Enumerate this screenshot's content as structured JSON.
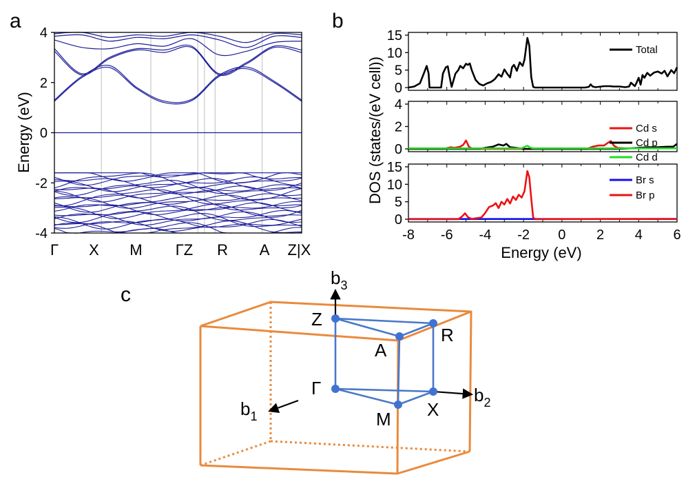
{
  "panel_labels": {
    "a": "a",
    "b": "b",
    "c": "c"
  },
  "colors": {
    "band": "#1c1c9a",
    "frame": "#000000",
    "grid": "#c8c8c8",
    "red": "#ee1111",
    "black": "#000000",
    "green": "#22dd22",
    "blue": "#1111ee",
    "bz_orange": "#e98a3c",
    "bz_blue": "#4a78c8",
    "bz_point": "#3f72d2"
  },
  "chart_data": [
    {
      "id": "band_structure",
      "type": "line",
      "title": "",
      "ylabel": "Energy (eV)",
      "ylim": [
        -4,
        4
      ],
      "yticks": [
        -4,
        -2,
        0,
        2,
        4
      ],
      "kpath": [
        "Γ",
        "X",
        "M",
        "Γ",
        "Z",
        "R",
        "A",
        "Z|X"
      ],
      "kpath_labels": [
        "Γ",
        "X",
        "M",
        "ΓZ",
        "R",
        "A",
        "Z|X"
      ],
      "kpath_positions": [
        0,
        0.19,
        0.39,
        0.58,
        0.65,
        0.84,
        1.0
      ],
      "fermi_level": 0,
      "conduction_band_min": 1.2,
      "valence_band_max": -1.6,
      "conduction_bands": [
        {
          "name": "cb1",
          "values": [
            1.25,
            2.2,
            2.6,
            1.75,
            1.2,
            1.28,
            2.25,
            2.55,
            2.0,
            1.25
          ]
        },
        {
          "name": "cb2",
          "values": [
            1.3,
            2.25,
            2.68,
            1.8,
            1.26,
            1.33,
            2.3,
            2.62,
            2.05,
            1.3
          ]
        },
        {
          "name": "cb3",
          "values": [
            3.25,
            2.3,
            2.95,
            3.3,
            3.2,
            3.4,
            2.3,
            2.75,
            3.4,
            3.2
          ]
        },
        {
          "name": "cb4",
          "values": [
            3.35,
            2.35,
            3.0,
            3.35,
            3.3,
            3.45,
            2.35,
            2.8,
            3.45,
            3.3
          ]
        },
        {
          "name": "cb5",
          "values": [
            3.7,
            3.4,
            3.35,
            3.55,
            3.45,
            3.75,
            3.1,
            3.25,
            3.6,
            3.65
          ]
        },
        {
          "name": "cb6",
          "values": [
            3.85,
            3.9,
            3.65,
            3.8,
            3.75,
            3.9,
            3.7,
            3.4,
            3.85,
            3.8
          ]
        },
        {
          "name": "cb7",
          "values": [
            3.95,
            4.0,
            3.8,
            3.9,
            3.85,
            4.0,
            3.85,
            3.6,
            3.95,
            3.9
          ]
        }
      ],
      "valence_band_count": 26,
      "valence_band_range": [
        -4.0,
        -1.6
      ]
    },
    {
      "id": "total_dos",
      "type": "line",
      "xlim": [
        -8,
        6
      ],
      "ylim": [
        0,
        15
      ],
      "yticks": [
        0,
        5,
        10,
        15
      ],
      "legend": "top-right",
      "series": [
        {
          "name": "Total",
          "color": "#000000",
          "x": [
            -8,
            -7.7,
            -7.4,
            -7.2,
            -7.05,
            -6.95,
            -6.9,
            -6.3,
            -6.2,
            -6.05,
            -5.95,
            -5.85,
            -5.75,
            -5.55,
            -5.4,
            -5.3,
            -5.15,
            -5.0,
            -4.9,
            -4.8,
            -4.7,
            -4.5,
            -4.3,
            -4.1,
            -3.9,
            -3.7,
            -3.5,
            -3.3,
            -3.15,
            -3.0,
            -2.85,
            -2.7,
            -2.6,
            -2.5,
            -2.35,
            -2.2,
            -2.05,
            -1.95,
            -1.8,
            -1.7,
            -1.6,
            -1.5,
            -1.4,
            1.2,
            1.4,
            1.5,
            1.6,
            1.75,
            1.9,
            2.2,
            2.5,
            2.7,
            3.0,
            3.3,
            3.5,
            3.6,
            3.8,
            3.9,
            4.0,
            4.1,
            4.2,
            4.3,
            4.45,
            4.6,
            4.8,
            5.0,
            5.2,
            5.35,
            5.5,
            5.7,
            5.85,
            6.0
          ],
          "y": [
            0,
            0.3,
            1.2,
            4,
            6.2,
            4,
            0,
            0,
            4,
            5.8,
            6.1,
            3,
            0.2,
            4,
            5,
            6.2,
            5.5,
            6.8,
            6.5,
            6.9,
            5,
            2.2,
            1,
            0.6,
            1.2,
            1.6,
            2.4,
            3.8,
            3.1,
            5.2,
            3.9,
            2.9,
            5.8,
            6.5,
            4.8,
            7.2,
            6.2,
            8,
            14.2,
            12,
            3,
            0.2,
            0,
            0,
            0.2,
            0.9,
            0.3,
            0.1,
            0.2,
            0.4,
            0.4,
            0.3,
            0.3,
            0.1,
            0.3,
            1.4,
            0.4,
            1.5,
            2.8,
            0.8,
            3.6,
            2.8,
            4.2,
            3.4,
            4.3,
            4.6,
            4.0,
            4.8,
            3.2,
            5.0,
            4.1,
            5.8
          ]
        }
      ]
    },
    {
      "id": "cd_pdos",
      "type": "line",
      "xlim": [
        -8,
        6
      ],
      "ylim": [
        0,
        4
      ],
      "yticks": [
        0,
        2,
        4
      ],
      "legend": "top-right",
      "series": [
        {
          "name": "Cd s",
          "color": "#ee1111",
          "x": [
            -8,
            -6.2,
            -5.8,
            -5.6,
            -5.3,
            -5.15,
            -5.0,
            -4.85,
            -4.7,
            -4.2,
            1.3,
            1.6,
            1.9,
            2.2,
            2.4,
            2.55,
            2.7,
            2.9,
            3.3,
            4.0,
            5.0,
            6.0
          ],
          "y": [
            0,
            0,
            0.15,
            0.1,
            0.2,
            0.35,
            0.75,
            0.2,
            0.05,
            0,
            0,
            0.2,
            0.3,
            0.3,
            0.55,
            0.7,
            0.3,
            0.1,
            0.05,
            0.05,
            0.05,
            0.05
          ]
        },
        {
          "name": "Cd p",
          "color": "#000000",
          "x": [
            -8,
            -4.3,
            -4.0,
            -3.6,
            -3.3,
            -3.05,
            -2.9,
            -2.7,
            -2.4,
            -2.0,
            3.0,
            3.6,
            4.0,
            4.5,
            5.0,
            5.5,
            5.8,
            6.0
          ],
          "y": [
            0,
            0,
            0.1,
            0.2,
            0.4,
            0.3,
            0.45,
            0.15,
            0.1,
            0,
            0,
            0.05,
            0.1,
            0.15,
            0.15,
            0.2,
            0.2,
            0.45
          ]
        },
        {
          "name": "Cd d",
          "color": "#22dd22",
          "x": [
            -8,
            -2.1,
            -1.95,
            -1.8,
            -1.65,
            -1.5,
            6.0
          ],
          "y": [
            0.05,
            0.05,
            0.18,
            0.28,
            0.12,
            0.05,
            0.05
          ]
        }
      ]
    },
    {
      "id": "br_pdos",
      "type": "line",
      "xlabel": "Energy (eV)",
      "xlim": [
        -8,
        6
      ],
      "ylim": [
        0,
        15
      ],
      "yticks": [
        0,
        5,
        10,
        15
      ],
      "xticks": [
        -8,
        -6,
        -4,
        -2,
        0,
        2,
        4,
        6
      ],
      "legend": "top-right",
      "series": [
        {
          "name": "Br s",
          "color": "#1111ee",
          "x": [
            -8,
            6
          ],
          "y": [
            0.05,
            0.05
          ]
        },
        {
          "name": "Br p",
          "color": "#ee1111",
          "x": [
            -8,
            -5.4,
            -5.2,
            -5.05,
            -4.9,
            -4.7,
            -4.2,
            -4.0,
            -3.8,
            -3.6,
            -3.45,
            -3.3,
            -3.15,
            -3.0,
            -2.85,
            -2.7,
            -2.55,
            -2.4,
            -2.25,
            -2.1,
            -1.95,
            -1.8,
            -1.7,
            -1.6,
            -1.5,
            -1.4,
            6.0
          ],
          "y": [
            0,
            0,
            0.8,
            1.7,
            0.6,
            0.1,
            0.5,
            1.8,
            3.5,
            3.9,
            4.6,
            3.2,
            5.0,
            4.2,
            5.8,
            4.5,
            6.5,
            5.5,
            7.0,
            6.2,
            8.0,
            13.8,
            12,
            6,
            0.5,
            0,
            0.1
          ]
        }
      ]
    }
  ],
  "dos_ylabel": "DOS (states/(eV cell))",
  "bz": {
    "points": {
      "Gamma": "Γ",
      "X": "X",
      "M": "M",
      "Z": "Z",
      "R": "R",
      "A": "A"
    },
    "axes": {
      "b1": "b",
      "b1_sub": "1",
      "b2": "b",
      "b2_sub": "2",
      "b3": "b",
      "b3_sub": "3"
    }
  }
}
